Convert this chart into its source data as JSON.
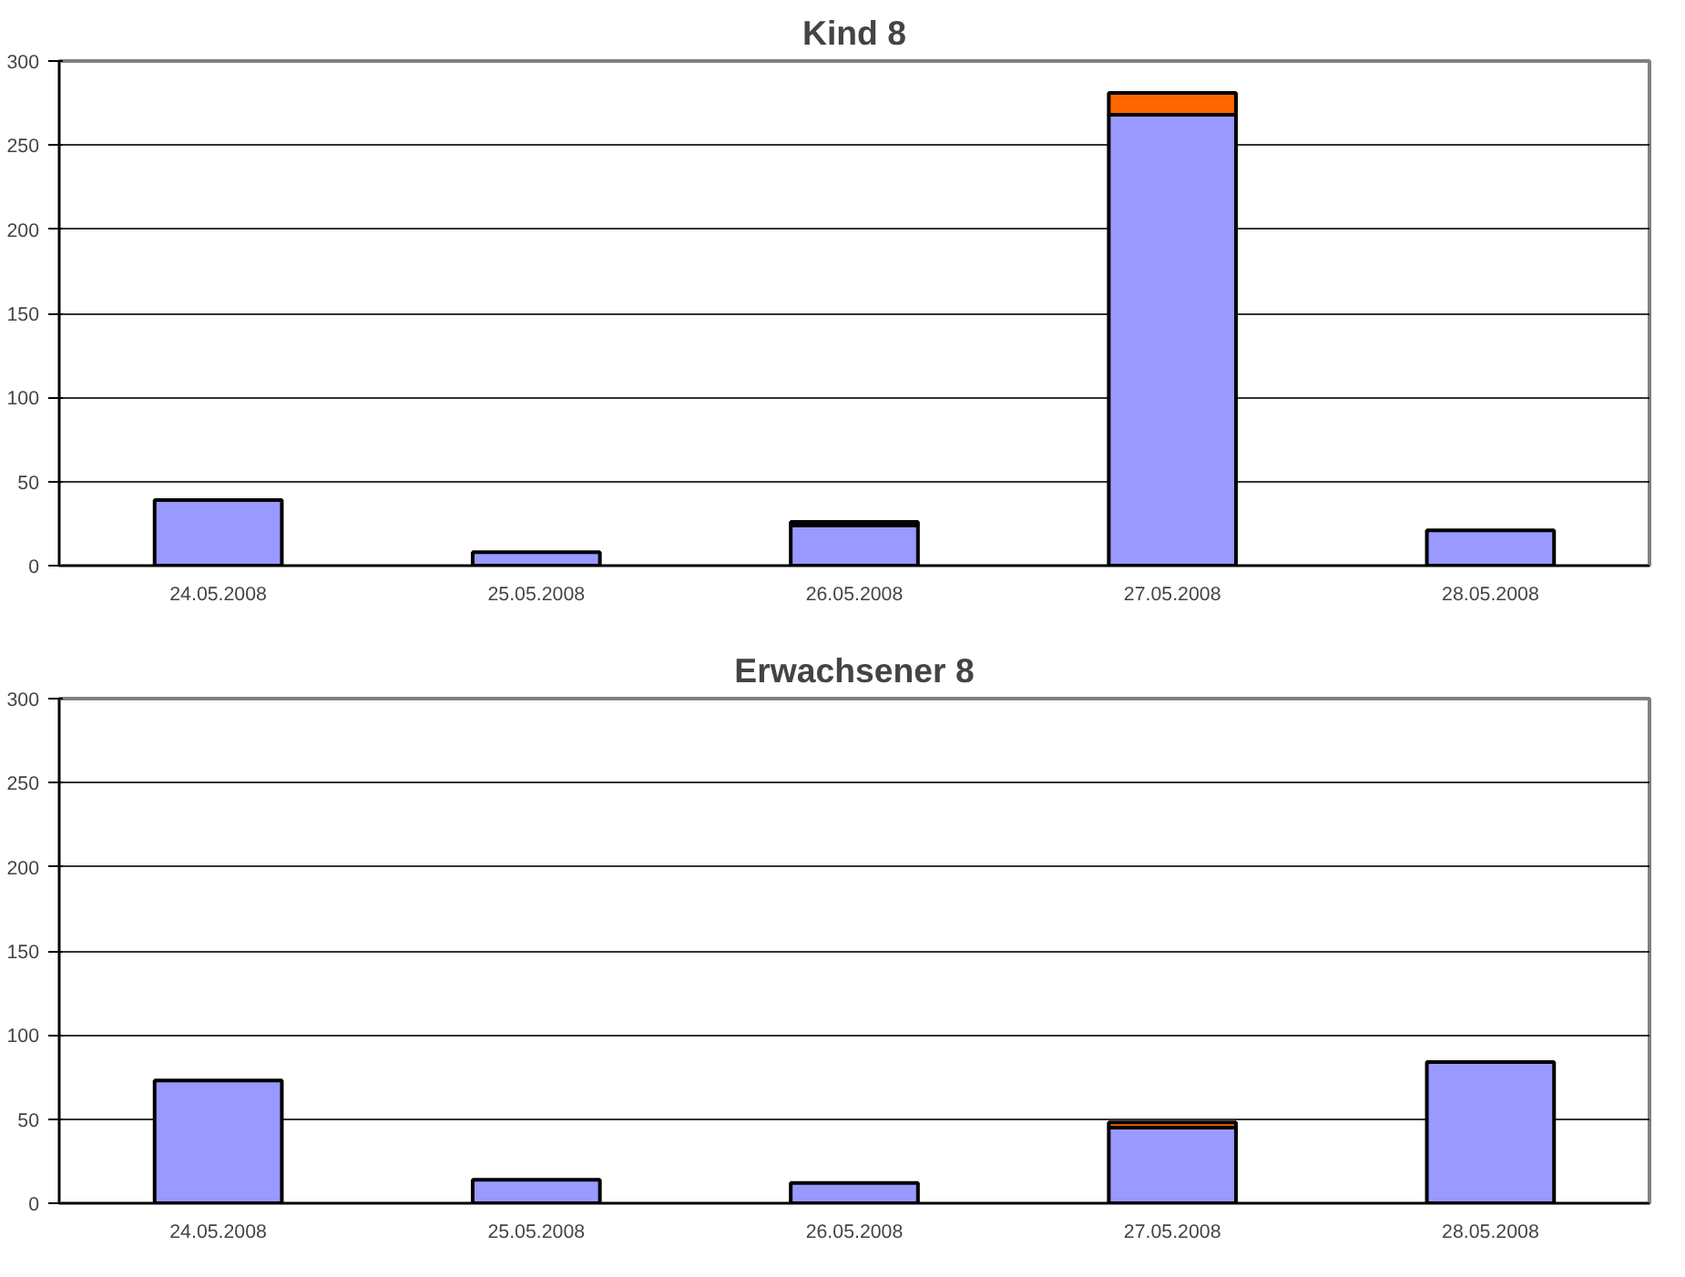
{
  "chart_data": [
    {
      "type": "bar",
      "title": "Kind 8",
      "categories": [
        "24.05.2008",
        "25.05.2008",
        "26.05.2008",
        "27.05.2008",
        "28.05.2008"
      ],
      "stacked": true,
      "series": [
        {
          "color": "#9999ff",
          "values": [
            39,
            8,
            24,
            268,
            21
          ]
        },
        {
          "color": "#ff6600",
          "values": [
            null,
            null,
            2,
            13,
            null
          ]
        }
      ],
      "ylim": [
        0,
        300
      ],
      "yticks": [
        0,
        50,
        100,
        150,
        200,
        250,
        300
      ],
      "grid": "y"
    },
    {
      "type": "bar",
      "title": "Erwachsener 8",
      "categories": [
        "24.05.2008",
        "25.05.2008",
        "26.05.2008",
        "27.05.2008",
        "28.05.2008"
      ],
      "stacked": true,
      "series": [
        {
          "color": "#9999ff",
          "values": [
            73,
            14,
            12,
            45,
            84
          ]
        },
        {
          "color": "#ff6600",
          "values": [
            null,
            null,
            null,
            3,
            null
          ]
        }
      ],
      "ylim": [
        0,
        300
      ],
      "yticks": [
        0,
        50,
        100,
        150,
        200,
        250,
        300
      ],
      "grid": "y"
    }
  ]
}
